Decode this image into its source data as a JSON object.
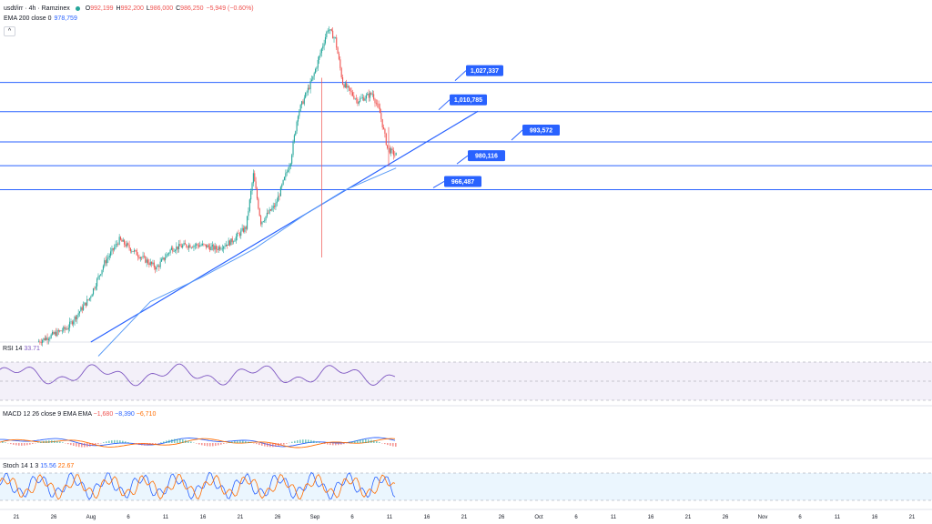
{
  "header": {
    "symbol": "usdt/irr · 4h · Ramzinex",
    "ohlc": [
      {
        "k": "O",
        "v": "992,199"
      },
      {
        "k": "H",
        "v": "992,200"
      },
      {
        "k": "L",
        "v": "986,000"
      },
      {
        "k": "C",
        "v": "986,250"
      }
    ],
    "change": "−5,949 (−0.60%)",
    "ema_label": "EMA 200 close 0",
    "ema_value": "978,759",
    "collapse_icon": "chevron-up-icon"
  },
  "colors": {
    "up": "#26a69a",
    "down": "#ef5350",
    "level": "#2962ff",
    "ema": "#5b9cf6",
    "rsi": "#7e57c2",
    "macd": "#2962ff",
    "signal": "#ff6d00",
    "stoch_k": "#2962ff",
    "stoch_d": "#ff6d00"
  },
  "rsi": {
    "label": "RSI 14",
    "value": "33.71"
  },
  "macd": {
    "label": "MACD 12 26 close 9 EMA EMA",
    "values": [
      "−1,680",
      "−8,390",
      "−6,710"
    ]
  },
  "stoch": {
    "label": "Stoch 14 1 3",
    "values": [
      "15.56",
      "22.67"
    ]
  },
  "chart_data": {
    "type": "line",
    "title": "usdt/irr · 4h · Ramzinex",
    "x_axis_labels": [
      "21",
      "26",
      "Aug",
      "6",
      "11",
      "16",
      "21",
      "26",
      "Sep",
      "6",
      "11",
      "16",
      "21",
      "26",
      "Oct",
      "6",
      "11",
      "16",
      "21",
      "26",
      "Nov",
      "6",
      "11",
      "16",
      "21"
    ],
    "horizontal_levels": [
      {
        "label": "1,027,337",
        "value": 1027337
      },
      {
        "label": "1,010,785",
        "value": 1010785
      },
      {
        "label": "993,572",
        "value": 993572
      },
      {
        "label": "980,116",
        "value": 980116
      },
      {
        "label": "966,487",
        "value": 966487
      }
    ],
    "series": [
      {
        "name": "usdt/irr",
        "points": [
          [
            "Jul 24",
            880000
          ],
          [
            "Jul 28",
            888000
          ],
          [
            "Jul 31",
            905000
          ],
          [
            "Aug 2",
            925000
          ],
          [
            "Aug 4",
            938000
          ],
          [
            "Aug 7",
            928000
          ],
          [
            "Aug 9",
            922000
          ],
          [
            "Aug 11",
            933000
          ],
          [
            "Aug 13",
            935000
          ],
          [
            "Aug 15",
            935000
          ],
          [
            "Aug 17",
            933000
          ],
          [
            "Aug 19",
            937000
          ],
          [
            "Aug 21",
            945000
          ],
          [
            "Aug 22",
            975000
          ],
          [
            "Aug 23",
            948000
          ],
          [
            "Aug 25",
            958000
          ],
          [
            "Aug 27",
            983000
          ],
          [
            "Aug 28",
            1010000
          ],
          [
            "Aug 30",
            1030000
          ],
          [
            "Sep 1",
            1058000
          ],
          [
            "Sep 2",
            1052000
          ],
          [
            "Sep 3",
            1027000
          ],
          [
            "Sep 5",
            1017000
          ],
          [
            "Sep 7",
            1021000
          ],
          [
            "Sep 8",
            1010000
          ],
          [
            "Sep 9",
            990000
          ],
          [
            "Sep 10",
            986250
          ]
        ]
      },
      {
        "name": "EMA 200 close 0",
        "points": [
          [
            "Aug 1",
            872000
          ],
          [
            "Aug 8",
            903000
          ],
          [
            "Aug 15",
            917000
          ],
          [
            "Aug 22",
            933000
          ],
          [
            "Aug 29",
            953000
          ],
          [
            "Sep 3",
            966000
          ],
          [
            "Sep 10",
            978759
          ]
        ]
      }
    ],
    "trendline": [
      [
        "Jul 31",
        880000
      ],
      [
        "Sep 21",
        1011000
      ]
    ],
    "ylim": [
      880000,
      1070000
    ]
  }
}
